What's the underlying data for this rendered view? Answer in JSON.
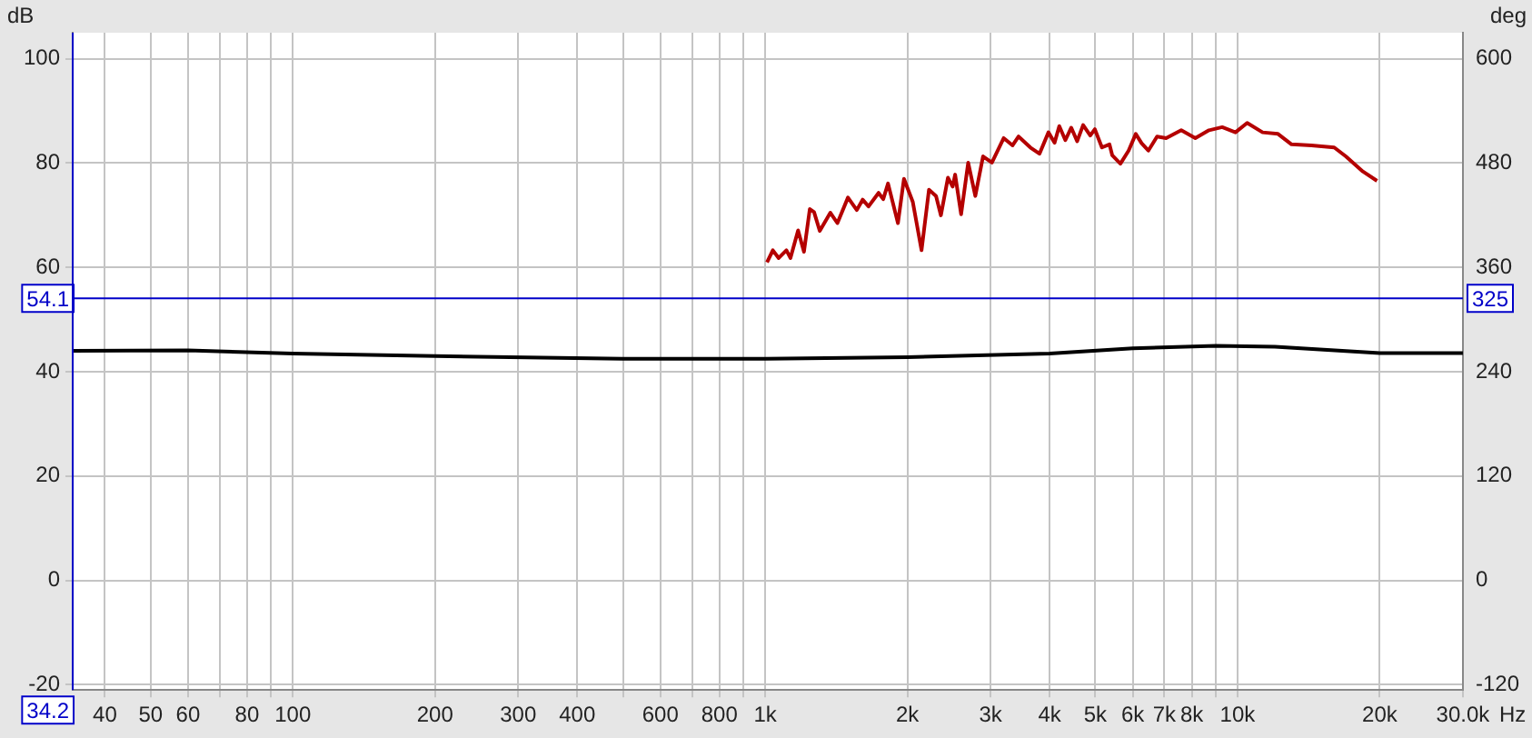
{
  "chart_data": {
    "type": "line",
    "xlabel": "Hz",
    "ylabel": "dB",
    "y2label": "deg",
    "log": "x",
    "grid": true,
    "legend": false,
    "line_style": "solid",
    "xlim": [
      34.2,
      30000
    ],
    "xticks": [
      {
        "value": 40,
        "label": "40"
      },
      {
        "value": 50,
        "label": "50"
      },
      {
        "value": 60,
        "label": "60"
      },
      {
        "value": 70,
        "label": null
      },
      {
        "value": 80,
        "label": "80"
      },
      {
        "value": 90,
        "label": null
      },
      {
        "value": 100,
        "label": "100"
      },
      {
        "value": 200,
        "label": "200"
      },
      {
        "value": 300,
        "label": "300"
      },
      {
        "value": 400,
        "label": "400"
      },
      {
        "value": 500,
        "label": null
      },
      {
        "value": 600,
        "label": "600"
      },
      {
        "value": 700,
        "label": null
      },
      {
        "value": 800,
        "label": "800"
      },
      {
        "value": 900,
        "label": null
      },
      {
        "value": 1000,
        "label": "1k"
      },
      {
        "value": 2000,
        "label": "2k"
      },
      {
        "value": 3000,
        "label": "3k"
      },
      {
        "value": 4000,
        "label": "4k"
      },
      {
        "value": 5000,
        "label": "5k"
      },
      {
        "value": 6000,
        "label": "6k"
      },
      {
        "value": 7000,
        "label": "7k"
      },
      {
        "value": 8000,
        "label": "8k"
      },
      {
        "value": 9000,
        "label": null
      },
      {
        "value": 10000,
        "label": "10k"
      },
      {
        "value": 20000,
        "label": "20k"
      },
      {
        "value": 30000,
        "label": "30.0k"
      }
    ],
    "ylim": [
      -21,
      105
    ],
    "yticks": [
      -20,
      0,
      20,
      40,
      60,
      80,
      100
    ],
    "y2lim": [
      -126,
      630
    ],
    "y2ticks": [
      -120,
      0,
      120,
      240,
      360,
      480,
      600
    ],
    "series": [
      {
        "color": "#b40000",
        "x": [
          1009,
          1038,
          1068,
          1109,
          1131,
          1174,
          1208,
          1243,
          1269,
          1305,
          1374,
          1422,
          1497,
          1563,
          1608,
          1655,
          1738,
          1778,
          1820,
          1910,
          1967,
          2053,
          2143,
          2222,
          2300,
          2355,
          2437,
          2494,
          2524,
          2599,
          2690,
          2785,
          2892,
          3020,
          3199,
          3340,
          3439,
          3643,
          3808,
          3978,
          4098,
          4194,
          4320,
          4446,
          4576,
          4711,
          4878,
          4988,
          5163,
          5356,
          5430,
          5650,
          5880,
          6089,
          6265,
          6474,
          6755,
          7060,
          7600,
          8140,
          8700,
          9280,
          9900,
          10480,
          11300,
          12180,
          13010,
          14340,
          16020,
          16950,
          18420,
          19740
        ],
        "values": [
          61.0,
          63.3,
          61.8,
          63.3,
          61.8,
          67.1,
          63.0,
          71.2,
          70.6,
          67.0,
          70.5,
          68.5,
          73.4,
          71.0,
          73.0,
          71.7,
          74.3,
          73.1,
          76.1,
          68.5,
          77.0,
          72.6,
          63.3,
          74.9,
          73.7,
          70.0,
          77.2,
          75.5,
          77.8,
          70.2,
          80.1,
          73.7,
          81.3,
          80.1,
          84.8,
          83.4,
          85.1,
          83.0,
          81.8,
          85.9,
          83.9,
          87.1,
          84.4,
          86.8,
          84.2,
          87.3,
          85.3,
          86.5,
          83.0,
          83.6,
          81.5,
          79.9,
          82.4,
          85.6,
          83.8,
          82.4,
          85.1,
          84.8,
          86.3,
          84.8,
          86.3,
          86.9,
          85.9,
          87.7,
          85.9,
          85.6,
          83.6,
          83.4,
          83.0,
          81.3,
          78.4,
          76.6
        ]
      },
      {
        "color": "#000000",
        "x": [
          34.2,
          60,
          100,
          200,
          500,
          1000,
          2000,
          4000,
          6000,
          9000,
          12000,
          20000,
          30000
        ],
        "values": [
          44.0,
          44.1,
          43.5,
          43.0,
          42.5,
          42.5,
          42.8,
          43.5,
          44.5,
          45.0,
          44.8,
          43.6,
          43.6
        ]
      }
    ],
    "ref_lines": [
      {
        "axis": "y",
        "value": 54.1,
        "label": "54.1",
        "color": "#0000c8"
      },
      {
        "axis": "x",
        "value": 34.2,
        "label": "34.2",
        "color": "#0000c8"
      }
    ],
    "annotations": [
      {
        "text": "325",
        "y": 54.1
      }
    ]
  }
}
